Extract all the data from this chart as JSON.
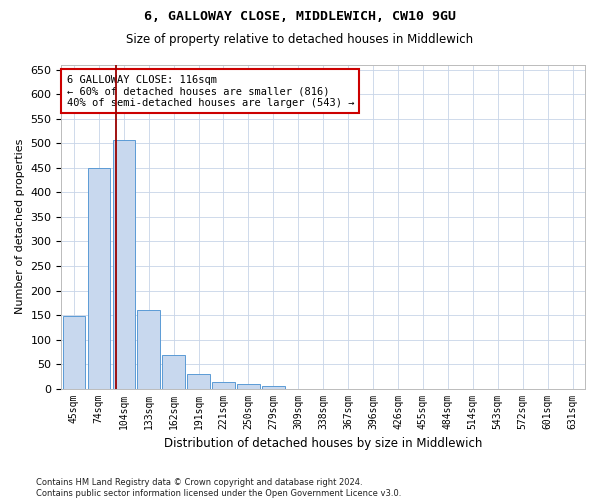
{
  "title": "6, GALLOWAY CLOSE, MIDDLEWICH, CW10 9GU",
  "subtitle": "Size of property relative to detached houses in Middlewich",
  "xlabel": "Distribution of detached houses by size in Middlewich",
  "ylabel": "Number of detached properties",
  "bar_labels": [
    "45sqm",
    "74sqm",
    "104sqm",
    "133sqm",
    "162sqm",
    "191sqm",
    "221sqm",
    "250sqm",
    "279sqm",
    "309sqm",
    "338sqm",
    "367sqm",
    "396sqm",
    "426sqm",
    "455sqm",
    "484sqm",
    "514sqm",
    "543sqm",
    "572sqm",
    "601sqm",
    "631sqm"
  ],
  "bar_values": [
    148,
    449,
    507,
    160,
    68,
    30,
    13,
    9,
    5,
    0,
    0,
    0,
    0,
    0,
    0,
    0,
    0,
    0,
    0,
    0,
    0
  ],
  "bar_color": "#c8d8ee",
  "bar_edge_color": "#5b9bd5",
  "background_color": "#ffffff",
  "grid_color": "#c8d4e8",
  "vline_x": 1.7,
  "vline_color": "#990000",
  "annotation_box_text": "6 GALLOWAY CLOSE: 116sqm\n← 60% of detached houses are smaller (816)\n40% of semi-detached houses are larger (543) →",
  "annotation_box_color": "#ffffff",
  "annotation_box_edge_color": "#cc0000",
  "ylim": [
    0,
    660
  ],
  "yticks": [
    0,
    50,
    100,
    150,
    200,
    250,
    300,
    350,
    400,
    450,
    500,
    550,
    600,
    650
  ],
  "footnote": "Contains HM Land Registry data © Crown copyright and database right 2024.\nContains public sector information licensed under the Open Government Licence v3.0."
}
